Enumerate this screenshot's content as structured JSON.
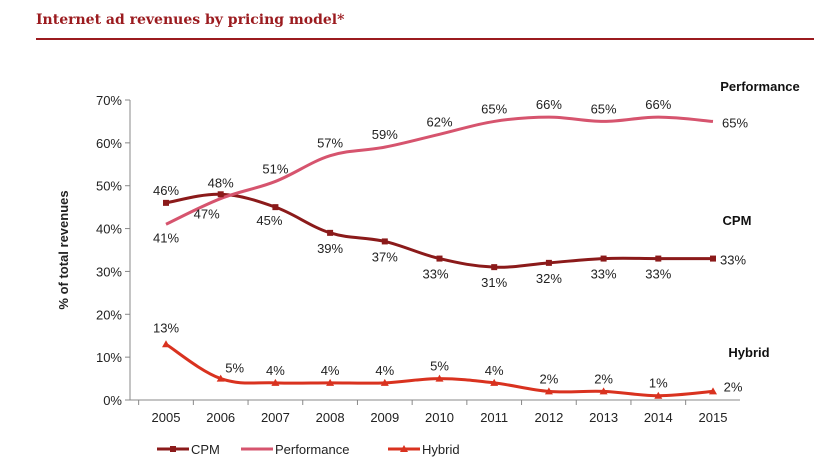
{
  "title": "Internet ad revenues by pricing model*",
  "chart_data": {
    "type": "line",
    "ylabel": "% of total revenues",
    "xlabel": "",
    "categories": [
      "2005",
      "2006",
      "2007",
      "2008",
      "2009",
      "2010",
      "2011",
      "2012",
      "2013",
      "2014",
      "2015"
    ],
    "ylim": [
      0,
      70
    ],
    "yticks": [
      "0%",
      "10%",
      "20%",
      "30%",
      "40%",
      "50%",
      "60%",
      "70%"
    ],
    "series": [
      {
        "name": "CPM",
        "color": "#8b1a1a",
        "marker": "square",
        "values": [
          46,
          48,
          45,
          39,
          37,
          33,
          31,
          32,
          33,
          33,
          33
        ],
        "labels": [
          "46%",
          "48%",
          "45%",
          "39%",
          "37%",
          "33%",
          "31%",
          "32%",
          "33%",
          "33%",
          "33%"
        ]
      },
      {
        "name": "Performance",
        "color": "#d6546e",
        "marker": "none",
        "values": [
          41,
          47,
          51,
          57,
          59,
          62,
          65,
          66,
          65,
          66,
          65
        ],
        "labels": [
          "41%",
          "47%",
          "51%",
          "57%",
          "59%",
          "62%",
          "65%",
          "66%",
          "65%",
          "66%",
          "65%"
        ]
      },
      {
        "name": "Hybrid",
        "color": "#d9321f",
        "marker": "triangle",
        "values": [
          13,
          5,
          4,
          4,
          4,
          5,
          4,
          2,
          2,
          1,
          2
        ],
        "labels": [
          "13%",
          "5%",
          "4%",
          "4%",
          "4%",
          "5%",
          "4%",
          "2%",
          "2%",
          "1%",
          "2%"
        ]
      }
    ],
    "legend": {
      "placement": "bottom",
      "items": [
        "CPM",
        "Performance",
        "Hybrid"
      ]
    },
    "grid": false
  }
}
